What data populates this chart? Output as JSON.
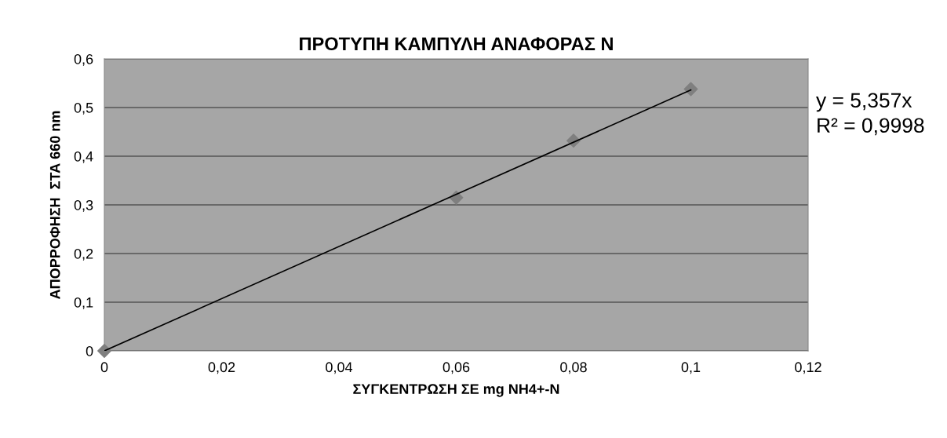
{
  "chart_data": {
    "type": "scatter",
    "title": "ΠΡΟΤΥΠΗ ΚΑΜΠΥΛΗ ΑΝΑΦΟΡΑΣ Ν",
    "xlabel": "ΣΥΓΚΕΝΤΡΩΣΗ ΣΕ mg NH4+-N",
    "ylabel": "ΑΠΟΡΡΟΦΗΣΗ  ΣΤΑ 660 nm",
    "x": [
      0,
      0.06,
      0.08,
      0.1
    ],
    "series": [
      {
        "color": "#7f7f7f",
        "values": [
          0,
          0.315,
          0.432,
          0.538
        ],
        "marker": "diamond"
      },
      {
        "type": "line",
        "color": "#000000",
        "x": [
          0,
          0.1
        ],
        "values": [
          0,
          0.536
        ],
        "marker": "none",
        "line_style": "solid"
      }
    ],
    "annotations": [
      "y = 5,357x",
      "R² = 0,9998"
    ],
    "xlim": [
      0,
      0.12
    ],
    "ylim": [
      0,
      0.6
    ],
    "xticks": [
      0,
      {
        "value": 0.02,
        "label": "0,02"
      },
      {
        "value": 0.04,
        "label": "0,04"
      },
      {
        "value": 0.06,
        "label": "0,06"
      },
      {
        "value": 0.08,
        "label": "0,08"
      },
      {
        "value": 0.1,
        "label": "0,1"
      },
      {
        "value": 0.12,
        "label": "0,12"
      }
    ],
    "yticks": [
      0,
      {
        "value": 0.1,
        "label": "0,1"
      },
      {
        "value": 0.2,
        "label": "0,2"
      },
      {
        "value": 0.3,
        "label": "0,3"
      },
      {
        "value": 0.4,
        "label": "0,4"
      },
      {
        "value": 0.5,
        "label": "0,5"
      },
      {
        "value": 0.6,
        "label": "0,6"
      }
    ],
    "grid": "y",
    "legend": false
  }
}
